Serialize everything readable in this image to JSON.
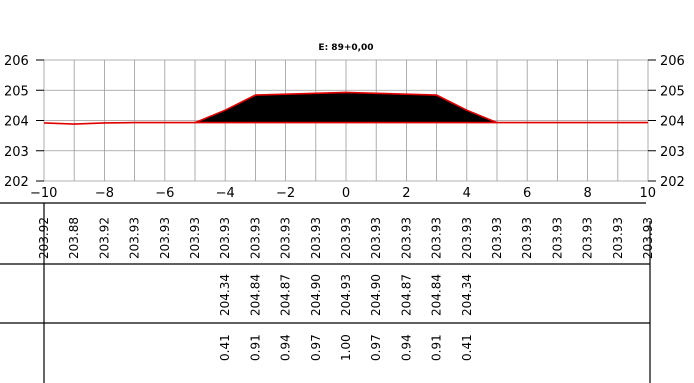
{
  "title": "E: 89+0,00",
  "y_axis": {
    "ticks": [
      "206",
      "205",
      "204",
      "203",
      "202"
    ],
    "range": [
      202,
      206
    ]
  },
  "x_axis": {
    "ticks": [
      "−10",
      "−8",
      "−6",
      "−4",
      "−2",
      "0",
      "2",
      "4",
      "6",
      "8",
      "10"
    ],
    "range": [
      -10,
      10
    ]
  },
  "colors": {
    "ground_line": "#e00000",
    "fill": "#000000",
    "grid": "#9a9a9a"
  },
  "chart_data": {
    "type": "cross-section",
    "title": "E: 89+0,00",
    "xlim": [
      -10,
      10
    ],
    "ylim": [
      202,
      206
    ],
    "ground": {
      "x": [
        -10,
        -9,
        -8,
        -7,
        -6,
        -5,
        -4,
        -3,
        -2,
        -1,
        0,
        1,
        2,
        3,
        4,
        5,
        6,
        7,
        8,
        9,
        10
      ],
      "y": [
        203.92,
        203.88,
        203.92,
        203.93,
        203.93,
        203.93,
        203.93,
        203.93,
        203.93,
        203.93,
        203.93,
        203.93,
        203.93,
        203.93,
        203.93,
        203.93,
        203.93,
        203.93,
        203.93,
        203.93,
        203.93
      ]
    },
    "design": {
      "x": [
        -5,
        -4,
        -3,
        -2,
        -1,
        0,
        1,
        2,
        3,
        4,
        5
      ],
      "y": [
        203.93,
        204.34,
        204.84,
        204.87,
        204.9,
        204.93,
        204.9,
        204.87,
        204.84,
        204.34,
        203.93
      ]
    }
  },
  "table": {
    "row1_labels": [
      "203.92",
      "203.88",
      "203.92",
      "203.93",
      "203.93",
      "203.93",
      "203.93",
      "203.93",
      "203.93",
      "203.93",
      "203.93",
      "203.93",
      "203.93",
      "203.93",
      "203.93",
      "203.93",
      "203.93",
      "203.93",
      "203.93",
      "203.93",
      "203.93"
    ],
    "row2_labels": [
      "204.34",
      "204.84",
      "204.87",
      "204.90",
      "204.93",
      "204.90",
      "204.87",
      "204.84",
      "204.34"
    ],
    "row3_labels": [
      "0.41",
      "0.91",
      "0.94",
      "0.97",
      "1.00",
      "0.97",
      "0.94",
      "0.91",
      "0.41"
    ]
  }
}
